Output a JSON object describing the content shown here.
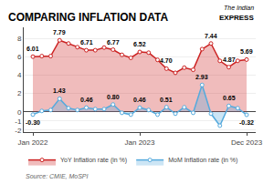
{
  "chart_data": {
    "type": "area",
    "title": "COMPARING INFLATION DATA",
    "categories": [
      "Jan 2022",
      null,
      null,
      null,
      null,
      null,
      null,
      null,
      null,
      null,
      null,
      null,
      "Jan 2023",
      null,
      null,
      null,
      null,
      null,
      null,
      null,
      null,
      null,
      null,
      null,
      "Dec 2023"
    ],
    "series": [
      {
        "name": "YoY Inflation rate (in %)",
        "color": "#cc2222",
        "marker": "circle",
        "values": [
          6.01,
          6.07,
          6.07,
          7.79,
          7.44,
          7.04,
          6.71,
          6.71,
          7.0,
          6.77,
          6.21,
          5.88,
          6.52,
          6.44,
          5.66,
          4.7,
          4.25,
          4.81,
          4.58,
          6.83,
          7.44,
          5.55,
          4.87,
          5.55,
          5.69
        ],
        "value_labels": [
          "6.01",
          null,
          null,
          "7.79",
          null,
          null,
          "6.71",
          null,
          null,
          "6.77",
          null,
          null,
          "6.52",
          null,
          null,
          "4.70",
          null,
          null,
          null,
          null,
          "7.44",
          null,
          "4.87",
          null,
          "5.69"
        ]
      },
      {
        "name": "MoM Inflation rate (in %)",
        "color": "#55aadd",
        "marker": "circle",
        "values": [
          -0.3,
          0.1,
          0.2,
          1.43,
          0.4,
          0.2,
          0.46,
          0.3,
          0.3,
          0.8,
          -0.1,
          -0.3,
          0.46,
          0.2,
          -0.3,
          0.51,
          -0.2,
          0.5,
          -0.1,
          2.93,
          -0.2,
          -1.5,
          0.65,
          0.4,
          -0.32
        ],
        "value_labels": [
          "-0.30",
          null,
          null,
          "1.43",
          null,
          null,
          "0.46",
          null,
          null,
          "0.80",
          null,
          null,
          "0.46",
          null,
          null,
          "0.51",
          null,
          null,
          null,
          "2.93",
          null,
          null,
          "0.65",
          null,
          "-0.32"
        ]
      }
    ],
    "ylim": [
      -2.2,
      9.2
    ],
    "yticks": [
      -2,
      -1,
      0,
      2,
      4,
      6,
      8
    ],
    "grid": true,
    "legend": "bottom",
    "data_labels": true,
    "annotations": [
      "The Indian",
      "EXPRESS",
      "Source: CMIE, MoSPI"
    ]
  }
}
